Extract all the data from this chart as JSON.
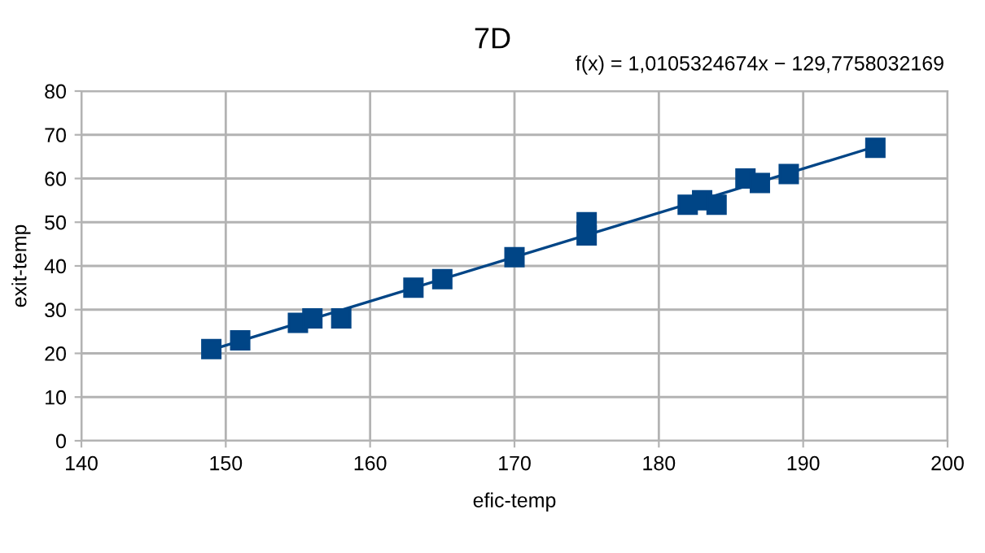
{
  "chart_data": {
    "type": "scatter",
    "title": "7D",
    "xlabel": "efic-temp",
    "ylabel": "exit-temp",
    "annotations": [
      "f(x) = 1,0105324674x − 129,7758032169"
    ],
    "series": [
      {
        "color": "#004586",
        "marker": "square",
        "x": [
          149,
          151,
          155,
          156,
          158,
          163,
          165,
          170,
          175,
          175,
          182,
          183,
          184,
          186,
          187,
          189,
          195
        ],
        "values": [
          21,
          23,
          27,
          28,
          28,
          35,
          37,
          42,
          47,
          50,
          54,
          55,
          54,
          60,
          59,
          61,
          67
        ]
      },
      {
        "type": "line",
        "color": "#004586",
        "x": [
          149,
          195
        ],
        "values": [
          20.8,
          67.3
        ]
      }
    ],
    "xlim": [
      140,
      200
    ],
    "xticks": [
      140,
      150,
      160,
      170,
      180,
      190,
      200
    ],
    "ylim": [
      0,
      80
    ],
    "yticks": [
      0,
      10,
      20,
      30,
      40,
      50,
      60,
      70,
      80
    ],
    "grid": true
  }
}
